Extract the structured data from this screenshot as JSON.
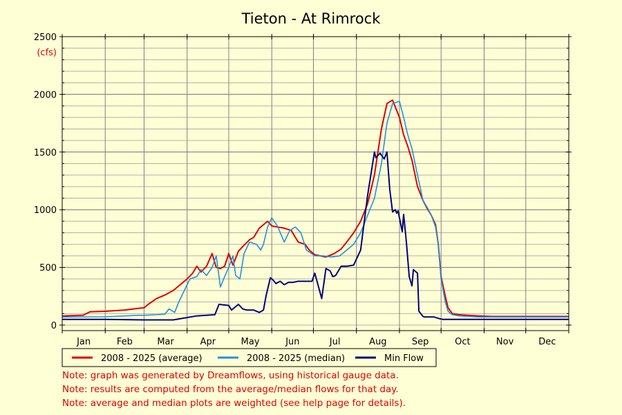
{
  "chart_data": {
    "type": "line",
    "title": "Tieton - At Rimrock",
    "ylabel": "(cfs)",
    "xlabel": "",
    "ylim": [
      0,
      2500
    ],
    "yticks": [
      0,
      500,
      1000,
      1500,
      2000,
      2500
    ],
    "ytick_labels": [
      "0",
      "500",
      "1000",
      "1500",
      "2000",
      "2500"
    ],
    "xlim": [
      0,
      365
    ],
    "months": [
      "Jan",
      "Feb",
      "Mar",
      "Apr",
      "May",
      "Jun",
      "Jul",
      "Aug",
      "Sep",
      "Oct",
      "Nov",
      "Dec"
    ],
    "month_days": [
      0,
      31,
      59,
      90,
      120,
      151,
      181,
      212,
      243,
      273,
      304,
      334,
      365
    ],
    "grid": true,
    "legend_position": "bottom",
    "series": [
      {
        "name": "2008 - 2025 (average)",
        "color": "#dd0000",
        "x": [
          0,
          15,
          20,
          31,
          45,
          55,
          59,
          62,
          68,
          74,
          80,
          90,
          94,
          97,
          100,
          104,
          108,
          111,
          114,
          117,
          120,
          123,
          127,
          130,
          135,
          138,
          142,
          148,
          151,
          155,
          160,
          165,
          170,
          175,
          178,
          182,
          186,
          190,
          196,
          201,
          205,
          210,
          215,
          220,
          225,
          230,
          234,
          238,
          243,
          246,
          249,
          252,
          256,
          260,
          263,
          266,
          269,
          271,
          273,
          276,
          278,
          281,
          286,
          292,
          300,
          310,
          320,
          335,
          365
        ],
        "y": [
          80,
          85,
          115,
          120,
          130,
          145,
          150,
          180,
          230,
          260,
          300,
          400,
          450,
          510,
          460,
          510,
          620,
          500,
          490,
          510,
          620,
          520,
          640,
          680,
          740,
          760,
          840,
          900,
          860,
          850,
          840,
          820,
          720,
          700,
          650,
          610,
          600,
          590,
          620,
          660,
          720,
          800,
          900,
          1050,
          1300,
          1700,
          1920,
          1950,
          1800,
          1650,
          1550,
          1430,
          1200,
          1080,
          1010,
          950,
          870,
          700,
          420,
          250,
          150,
          100,
          90,
          85,
          80,
          75,
          75,
          75,
          75
        ]
      },
      {
        "name": "2008 - 2025 (median)",
        "color": "#2090e0",
        "x": [
          0,
          31,
          55,
          59,
          68,
          74,
          77,
          81,
          84,
          88,
          92,
          97,
          100,
          104,
          108,
          111,
          114,
          117,
          120,
          123,
          125,
          128,
          131,
          135,
          140,
          143,
          145,
          148,
          151,
          155,
          160,
          164,
          168,
          172,
          176,
          182,
          188,
          194,
          200,
          205,
          210,
          215,
          220,
          225,
          230,
          234,
          238,
          243,
          246,
          249,
          252,
          256,
          260,
          263,
          266,
          269,
          271,
          273,
          276,
          278,
          281,
          286,
          292,
          300,
          310,
          320,
          335,
          365
        ],
        "y": [
          70,
          72,
          85,
          85,
          90,
          95,
          140,
          110,
          200,
          300,
          400,
          420,
          480,
          430,
          500,
          600,
          330,
          420,
          500,
          600,
          430,
          400,
          620,
          720,
          700,
          650,
          700,
          850,
          930,
          860,
          720,
          820,
          850,
          800,
          650,
          600,
          600,
          590,
          600,
          650,
          700,
          800,
          950,
          1100,
          1400,
          1750,
          1920,
          1940,
          1800,
          1650,
          1530,
          1300,
          1080,
          1020,
          950,
          850,
          700,
          400,
          200,
          120,
          90,
          80,
          75,
          70,
          70,
          70,
          70,
          70
        ]
      },
      {
        "name": "Min Flow",
        "color": "#00007a",
        "x": [
          0,
          31,
          59,
          80,
          97,
          110,
          113,
          120,
          122,
          127,
          130,
          133,
          138,
          142,
          145,
          147,
          150,
          152,
          154,
          157,
          160,
          163,
          166,
          170,
          175,
          180,
          182,
          187,
          190,
          193,
          195,
          197,
          201,
          205,
          210,
          215,
          220,
          225,
          226,
          229,
          232,
          234,
          236,
          238,
          240,
          241,
          242,
          245,
          246,
          248,
          250,
          252,
          253,
          256,
          257,
          260,
          261,
          263,
          267,
          268,
          272,
          274,
          276,
          278,
          280,
          292,
          300,
          310,
          320,
          335,
          365
        ],
        "y": [
          50,
          50,
          45,
          45,
          80,
          90,
          180,
          170,
          130,
          180,
          140,
          130,
          130,
          110,
          130,
          260,
          410,
          390,
          360,
          380,
          350,
          370,
          370,
          380,
          380,
          380,
          450,
          230,
          490,
          470,
          420,
          430,
          510,
          510,
          520,
          650,
          1120,
          1500,
          1450,
          1490,
          1440,
          1500,
          1180,
          980,
          1000,
          970,
          990,
          810,
          960,
          720,
          420,
          340,
          480,
          450,
          120,
          75,
          70,
          70,
          70,
          70,
          55,
          50,
          50,
          50,
          50,
          50,
          50,
          50,
          50,
          50,
          50
        ]
      }
    ],
    "notes": [
      "Note: graph was generated by Dreamflows, using historical gauge data.",
      "Note: results are computed from the average/median flows for that day.",
      "Note: average and median plots are weighted (see help page for details)."
    ]
  }
}
